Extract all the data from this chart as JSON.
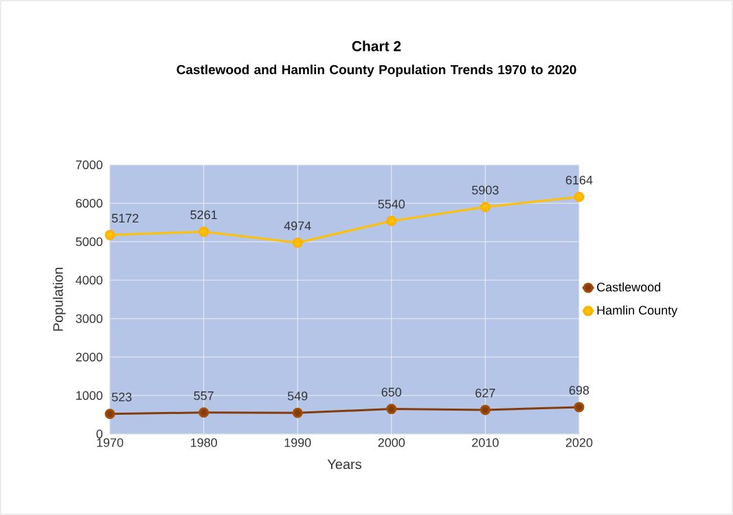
{
  "chart_data": {
    "type": "line",
    "title": "Chart 2",
    "subtitle": "Castlewood and Hamlin County Population Trends 1970 to 2020",
    "xlabel": "Years",
    "ylabel": "Population",
    "x": [
      1970,
      1980,
      1990,
      2000,
      2010,
      2020
    ],
    "series": [
      {
        "name": "Castlewood",
        "color": "#843c0c",
        "values": [
          523,
          557,
          549,
          650,
          627,
          698
        ]
      },
      {
        "name": "Hamlin County",
        "color": "#ffc000",
        "values": [
          5172,
          5261,
          4974,
          5540,
          5903,
          6164
        ]
      }
    ],
    "xlim": [
      1970,
      2020
    ],
    "xticks": [
      1970,
      1980,
      1990,
      2000,
      2010,
      2020
    ],
    "ylim": [
      0,
      7000
    ],
    "yticks": [
      0,
      1000,
      2000,
      3000,
      4000,
      5000,
      6000,
      7000
    ],
    "grid": true,
    "legend": "right",
    "marker": "circle",
    "data_labels": true
  }
}
